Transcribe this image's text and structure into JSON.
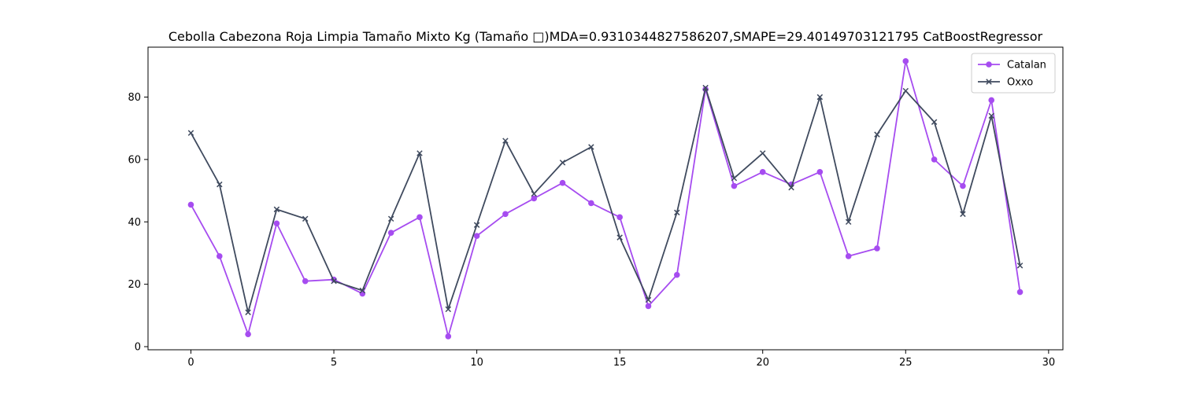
{
  "chart_data": {
    "type": "line",
    "title": "Cebolla Cabezona Roja Limpia Tamaño Mixto Kg (Tamaño □)MDA=0.9310344827586207,SMAPE=29.40149703121795 CatBoostRegressor",
    "xlabel": "",
    "ylabel": "",
    "xlim": [
      -1.5,
      30.5
    ],
    "ylim": [
      -1,
      96
    ],
    "xticks": [
      0,
      5,
      10,
      15,
      20,
      25,
      30
    ],
    "yticks": [
      0,
      20,
      40,
      60,
      80
    ],
    "grid": false,
    "legend_position": "top-right",
    "x": [
      0,
      1,
      2,
      3,
      4,
      5,
      6,
      7,
      8,
      9,
      10,
      11,
      12,
      13,
      14,
      15,
      16,
      17,
      18,
      19,
      20,
      21,
      22,
      23,
      24,
      25,
      26,
      27,
      28,
      29
    ],
    "series": [
      {
        "name": "Catalan",
        "color": "#a64cf0",
        "marker": "circle",
        "values": [
          45.5,
          29,
          4,
          39.5,
          21,
          21.5,
          17,
          36.5,
          41.5,
          3.3,
          35.5,
          42.5,
          47.5,
          52.5,
          46,
          41.5,
          13,
          23,
          82.5,
          51.5,
          56,
          52,
          56,
          29,
          31.5,
          91.5,
          60,
          51.5,
          79,
          17.5
        ]
      },
      {
        "name": "Oxxo",
        "color": "#3f4a5e",
        "marker": "x",
        "values": [
          68.5,
          52,
          11,
          44,
          41,
          21,
          18,
          41,
          62,
          12,
          39,
          66,
          49,
          59,
          64,
          35,
          15,
          43,
          83,
          54,
          62,
          51,
          80,
          40,
          68,
          82,
          72,
          42.5,
          74,
          26
        ]
      }
    ]
  }
}
